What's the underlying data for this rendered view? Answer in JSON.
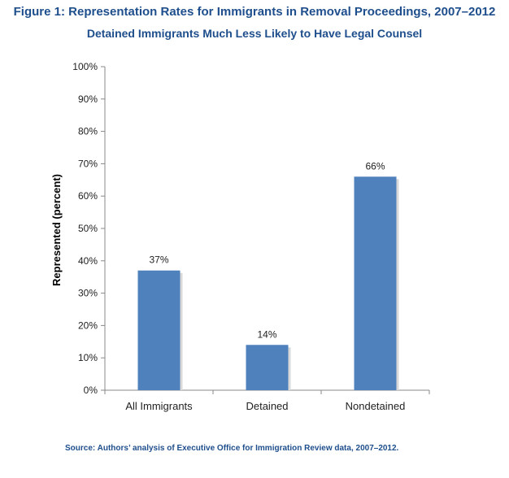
{
  "title": "Figure 1: Representation Rates for Immigrants in Removal Proceedings, 2007–2012",
  "subtitle": "Detained Immigrants Much Less Likely to Have Legal Counsel",
  "source": "Source: Authors’ analysis of Executive Office for Immigration Review data, 2007–2012.",
  "colors": {
    "bar": "#4f81bd",
    "title": "#1e4e8c",
    "axis": "#888888"
  },
  "chart_data": {
    "type": "bar",
    "title": "Figure 1: Representation Rates for Immigrants in Removal Proceedings, 2007–2012",
    "subtitle": "Detained Immigrants Much Less Likely to Have Legal Counsel",
    "xlabel": "",
    "ylabel": "Represented (percent)",
    "categories": [
      "All Immigrants",
      "Detained",
      "Nondetained"
    ],
    "values": [
      37,
      14,
      66
    ],
    "data_labels": [
      "37%",
      "14%",
      "66%"
    ],
    "ylim": [
      0,
      100
    ],
    "yticks": [
      0,
      10,
      20,
      30,
      40,
      50,
      60,
      70,
      80,
      90,
      100
    ],
    "ytick_labels": [
      "0%",
      "10%",
      "20%",
      "30%",
      "40%",
      "50%",
      "60%",
      "70%",
      "80%",
      "90%",
      "100%"
    ],
    "grid": false,
    "legend": "none"
  }
}
